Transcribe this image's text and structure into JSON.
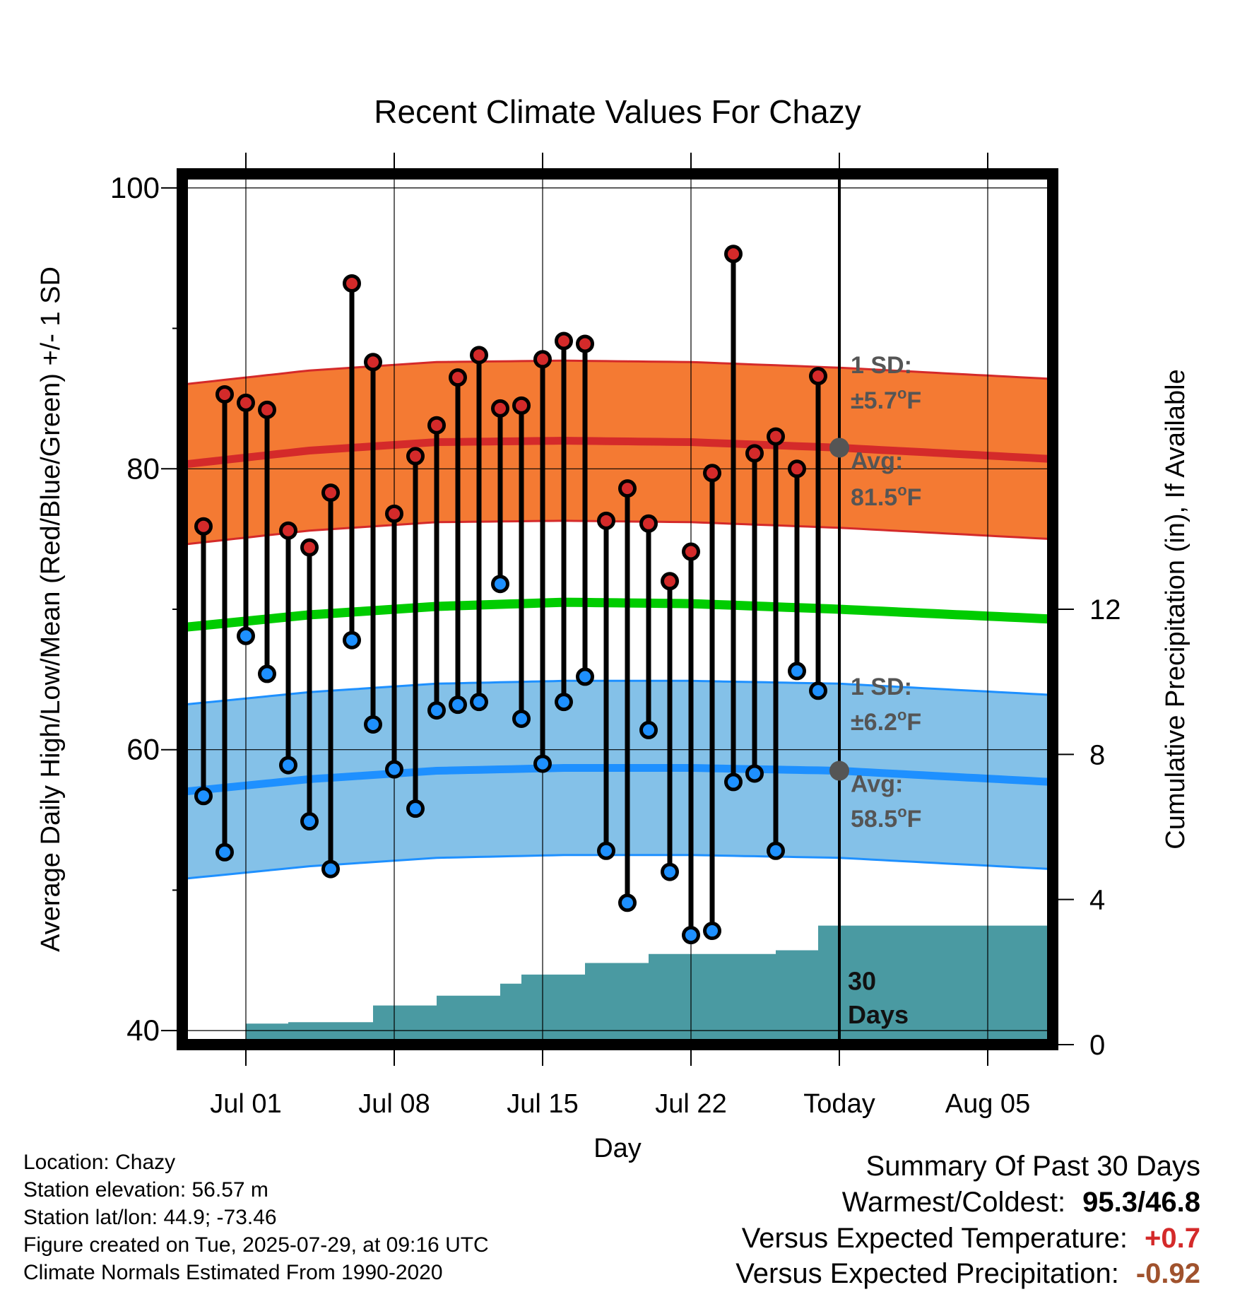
{
  "chart_data": {
    "type": "line",
    "title": "Recent Climate Values For Chazy",
    "xlabel": "Day",
    "ylabel": "Average Daily High/Low/Mean (Red/Blue/Green) +/- 1 SD",
    "y2label": "Cumulative Precipitation (in), If Available",
    "xlim": [
      "2025-06-28",
      "2025-08-08"
    ],
    "ylim": [
      39,
      101
    ],
    "y2lim": [
      0,
      24
    ],
    "x_ticks": [
      {
        "date": "2025-07-01",
        "label": "Jul 01"
      },
      {
        "date": "2025-07-08",
        "label": "Jul 08"
      },
      {
        "date": "2025-07-15",
        "label": "Jul 15"
      },
      {
        "date": "2025-07-22",
        "label": "Jul 22"
      },
      {
        "date": "2025-07-29",
        "label": "Today"
      },
      {
        "date": "2025-08-05",
        "label": "Aug 05"
      }
    ],
    "y_tick_labels": [
      "40",
      "60",
      "80",
      "100"
    ],
    "y2_tick_labels": [
      "0",
      "4",
      "8",
      "12"
    ],
    "grid": true,
    "colors": {
      "high": "#d42a2a",
      "high_band": "#f47a33",
      "low": "#1e90ff",
      "low_band": "#84c1e8",
      "mean": "#00cc00",
      "precip": "#4a9aa2",
      "avg_marker": "#555555",
      "annotation": "#555555"
    },
    "normals": {
      "dates": [
        "2025-06-28",
        "2025-07-04",
        "2025-07-10",
        "2025-07-16",
        "2025-07-22",
        "2025-07-29",
        "2025-08-08"
      ],
      "high_avg": [
        80.3,
        81.3,
        81.9,
        82.0,
        81.9,
        81.5,
        80.7
      ],
      "high_sd": 5.7,
      "low_avg": [
        57.0,
        57.9,
        58.5,
        58.7,
        58.7,
        58.5,
        57.7
      ],
      "low_sd": 6.2,
      "mean_avg": [
        68.7,
        69.6,
        70.2,
        70.5,
        70.4,
        70.0,
        69.3
      ]
    },
    "observed": {
      "dates": [
        "2025-06-29",
        "2025-06-30",
        "2025-07-01",
        "2025-07-02",
        "2025-07-03",
        "2025-07-04",
        "2025-07-05",
        "2025-07-06",
        "2025-07-07",
        "2025-07-08",
        "2025-07-09",
        "2025-07-10",
        "2025-07-11",
        "2025-07-12",
        "2025-07-13",
        "2025-07-14",
        "2025-07-15",
        "2025-07-16",
        "2025-07-17",
        "2025-07-18",
        "2025-07-19",
        "2025-07-20",
        "2025-07-21",
        "2025-07-22",
        "2025-07-23",
        "2025-07-24",
        "2025-07-25",
        "2025-07-26",
        "2025-07-27",
        "2025-07-28"
      ],
      "high": [
        75.9,
        85.3,
        84.7,
        84.2,
        75.6,
        74.4,
        78.3,
        93.2,
        87.6,
        76.8,
        80.9,
        83.1,
        86.5,
        88.1,
        84.3,
        84.5,
        87.8,
        89.1,
        88.9,
        76.3,
        78.6,
        76.1,
        72.0,
        74.1,
        79.7,
        95.3,
        81.1,
        82.3,
        80.0,
        86.6
      ],
      "low": [
        56.7,
        52.7,
        68.1,
        65.4,
        58.9,
        54.9,
        51.5,
        67.8,
        61.8,
        58.6,
        55.8,
        62.8,
        63.2,
        63.4,
        71.8,
        62.2,
        59.0,
        63.4,
        65.2,
        52.8,
        49.1,
        61.4,
        51.3,
        46.8,
        47.1,
        57.7,
        58.3,
        52.8,
        65.6,
        64.2
      ]
    },
    "precip": {
      "dates": [
        "2025-06-30",
        "2025-07-01",
        "2025-07-03",
        "2025-07-05",
        "2025-07-06",
        "2025-07-07",
        "2025-07-08",
        "2025-07-09",
        "2025-07-10",
        "2025-07-11",
        "2025-07-12",
        "2025-07-13",
        "2025-07-14",
        "2025-07-15",
        "2025-07-16",
        "2025-07-17",
        "2025-07-18",
        "2025-07-19",
        "2025-07-20",
        "2025-07-21",
        "2025-07-22",
        "2025-07-23",
        "2025-07-24",
        "2025-07-25",
        "2025-07-26",
        "2025-07-27",
        "2025-07-28",
        "2025-07-29",
        "2025-08-08"
      ],
      "cumulative": [
        0.0,
        0.58,
        0.62,
        0.62,
        0.62,
        1.08,
        1.08,
        1.08,
        1.35,
        1.35,
        1.35,
        1.68,
        1.93,
        1.93,
        1.93,
        2.25,
        2.25,
        2.25,
        2.5,
        2.5,
        2.5,
        2.5,
        2.5,
        2.5,
        2.6,
        2.6,
        3.28,
        3.28,
        3.28
      ]
    },
    "annotations": {
      "high_sd_label": "1 SD:",
      "high_sd_value": "±5.7°F",
      "high_avg_label": "Avg:",
      "high_avg_value": "81.5°F",
      "low_sd_label": "1 SD:",
      "low_sd_value": "±6.2°F",
      "low_avg_label": "Avg:",
      "low_avg_value": "58.5°F",
      "days_line1": "30",
      "days_line2": "Days",
      "today_date": "2025-07-29",
      "today_high_avg": 81.5,
      "today_low_avg": 58.5
    }
  },
  "footer": {
    "location": "Location: Chazy",
    "elevation": "Station elevation: 56.57 m",
    "latlon": "Station lat/lon: 44.9; -73.46",
    "created": "Figure created on Tue, 2025-07-29, at 09:16 UTC",
    "normals": "Climate Normals Estimated From 1990-2020"
  },
  "summary": {
    "title": "Summary Of Past 30 Days",
    "warmest_label": "Warmest/Coldest:",
    "warmest_value": "95.3",
    "coldest_value": "46.8",
    "temp_label": "Versus Expected Temperature:",
    "temp_value": "+0.7",
    "temp_color": "#d42a2a",
    "precip_label": "Versus Expected Precipitation:",
    "precip_value": "-0.92",
    "precip_color": "#a0522d"
  }
}
